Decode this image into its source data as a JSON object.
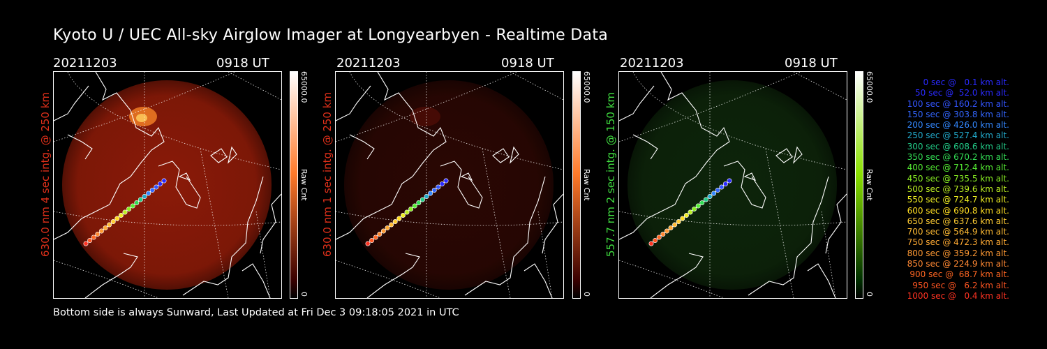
{
  "title": "Kyoto U / UEC All-sky Airglow Imager at Longyearbyen - Realtime Data",
  "footer": "Bottom side is always Sunward, Last Updated at Fri Dec  3 09:18:05 2021 in UTC",
  "panels": [
    {
      "date": "20211203",
      "time": "0918 UT",
      "ylabel": "630.0 nm 4 sec intg. @ 250 km",
      "label_color": "#e0301a",
      "colorbar": {
        "max": "65000.0",
        "min": "0",
        "unit": "Raw Cnt",
        "top_color": "#ffffff",
        "mid_color": "#ff7a2a",
        "bottom_color": "#3a0000"
      },
      "image_tint": "#8a1a08",
      "glow": "bright-patch"
    },
    {
      "date": "20211203",
      "time": "0918 UT",
      "ylabel": "630.0 nm 1 sec intg. @ 250 km",
      "label_color": "#e0301a",
      "colorbar": {
        "max": "65000.0",
        "min": "0",
        "unit": "Raw Cnt",
        "top_color": "#ffffff",
        "mid_color": "#ff7a2a",
        "bottom_color": "#3a0000"
      },
      "image_tint": "#2a0703",
      "glow": "faint"
    },
    {
      "date": "20211203",
      "time": "0918 UT",
      "ylabel": "557.7 nm 2 sec intg. @ 150 km",
      "label_color": "#40e040",
      "colorbar": {
        "max": "65000.0",
        "min": "0",
        "unit": "Raw Cnt",
        "top_color": "#ffffff",
        "mid_color": "#8ae000",
        "bottom_color": "#003000"
      },
      "image_tint": "#0d240a",
      "glow": "none"
    }
  ],
  "trajectory": [
    {
      "text": "0 sec @   0.1 km alt.",
      "color": "#2a2aff"
    },
    {
      "text": "50 sec @  52.0 km alt.",
      "color": "#2a2aff"
    },
    {
      "text": "100 sec @ 160.2 km alt.",
      "color": "#3355ff"
    },
    {
      "text": "150 sec @ 303.8 km alt.",
      "color": "#3366ff"
    },
    {
      "text": "200 sec @ 426.0 km alt.",
      "color": "#3388ff"
    },
    {
      "text": "250 sec @ 527.4 km alt.",
      "color": "#22aacc"
    },
    {
      "text": "300 sec @ 608.6 km alt.",
      "color": "#22cc88"
    },
    {
      "text": "350 sec @ 670.2 km alt.",
      "color": "#33dd55"
    },
    {
      "text": "400 sec @ 712.4 km alt.",
      "color": "#55ee33"
    },
    {
      "text": "450 sec @ 735.5 km alt.",
      "color": "#88ee22"
    },
    {
      "text": "500 sec @ 739.6 km alt.",
      "color": "#bbee22"
    },
    {
      "text": "550 sec @ 724.7 km alt.",
      "color": "#eeee22"
    },
    {
      "text": "600 sec @ 690.8 km alt.",
      "color": "#ffdd22"
    },
    {
      "text": "650 sec @ 637.6 km alt.",
      "color": "#ffcc33"
    },
    {
      "text": "700 sec @ 564.9 km alt.",
      "color": "#ffbb33"
    },
    {
      "text": "750 sec @ 472.3 km alt.",
      "color": "#ffaa33"
    },
    {
      "text": "800 sec @ 359.2 km alt.",
      "color": "#ff9933"
    },
    {
      "text": "850 sec @ 224.9 km alt.",
      "color": "#ff8833"
    },
    {
      "text": "900 sec @  68.7 km alt.",
      "color": "#ff6622"
    },
    {
      "text": "950 sec @   6.2 km alt.",
      "color": "#ff5522"
    },
    {
      "text": "1000 sec @   0.4 km alt.",
      "color": "#ff3322"
    }
  ]
}
